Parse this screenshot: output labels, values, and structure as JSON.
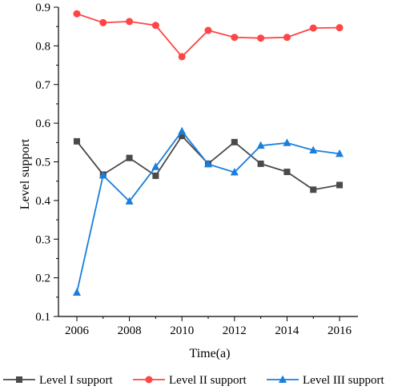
{
  "chart_data": {
    "type": "line",
    "xlabel": "Time(a)",
    "ylabel": "Level support",
    "xlim": [
      2005.3,
      2016.7
    ],
    "ylim": [
      0.1,
      0.9
    ],
    "x_ticks": [
      2006,
      2008,
      2010,
      2012,
      2014,
      2016
    ],
    "y_ticks": [
      0.1,
      0.2,
      0.3,
      0.4,
      0.5,
      0.6,
      0.7,
      0.8,
      0.9
    ],
    "x_tick_labels": [
      "2006",
      "2008",
      "2010",
      "2012",
      "2014",
      "2016"
    ],
    "y_tick_labels": [
      "0.1",
      "0.2",
      "0.3",
      "0.4",
      "0.5",
      "0.6",
      "0.7",
      "0.8",
      "0.9"
    ],
    "grid": false,
    "legend_position": "bottom",
    "x": [
      2006,
      2007,
      2008,
      2009,
      2010,
      2011,
      2012,
      2013,
      2014,
      2015,
      2016
    ],
    "series": [
      {
        "name": "Level I support",
        "color": "#4a4a4a",
        "marker": "square",
        "values": [
          0.553,
          0.467,
          0.51,
          0.464,
          0.567,
          0.495,
          0.551,
          0.495,
          0.474,
          0.428,
          0.44
        ]
      },
      {
        "name": "Level II support",
        "color": "#ff4545",
        "marker": "circle",
        "values": [
          0.883,
          0.86,
          0.863,
          0.853,
          0.772,
          0.84,
          0.822,
          0.82,
          0.822,
          0.846,
          0.847
        ]
      },
      {
        "name": "Level III support",
        "color": "#1a7fdc",
        "marker": "triangle",
        "values": [
          0.162,
          0.465,
          0.398,
          0.487,
          0.579,
          0.494,
          0.473,
          0.542,
          0.549,
          0.53,
          0.521
        ]
      }
    ]
  }
}
